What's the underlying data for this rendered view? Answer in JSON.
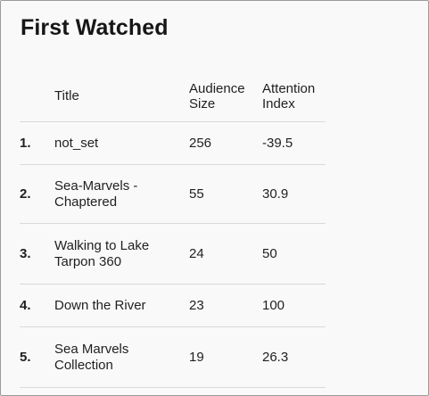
{
  "widget": {
    "title": "First Watched"
  },
  "table": {
    "columns": {
      "title": "Title",
      "audience_size": "Audience Size",
      "attention_index": "Attention Index"
    },
    "rows": [
      {
        "rank": "1.",
        "title": "not_set",
        "audience_size": "256",
        "attention_index": "-39.5"
      },
      {
        "rank": "2.",
        "title": "Sea-Marvels - Chaptered",
        "audience_size": "55",
        "attention_index": "30.9"
      },
      {
        "rank": "3.",
        "title": "Walking to Lake Tarpon 360",
        "audience_size": "24",
        "attention_index": "50"
      },
      {
        "rank": "4.",
        "title": "Down the River",
        "audience_size": "23",
        "attention_index": "100"
      },
      {
        "rank": "5.",
        "title": "Sea Marvels Collection",
        "audience_size": "19",
        "attention_index": "26.3"
      }
    ]
  }
}
